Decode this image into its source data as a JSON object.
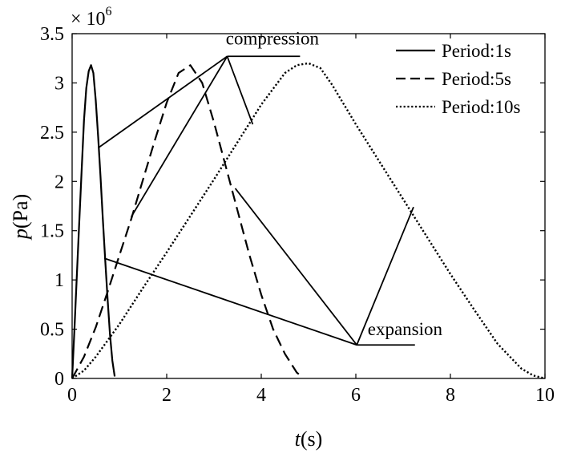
{
  "chart_data": {
    "type": "line",
    "title": "",
    "xlabel": {
      "var": "t",
      "unit": "(s)"
    },
    "ylabel": {
      "var": "p",
      "unit": "(Pa)"
    },
    "xlim": [
      0,
      10
    ],
    "ylim": [
      0,
      3.5
    ],
    "y_scale_label": {
      "base": "× 10",
      "exp": "6"
    },
    "grid": false,
    "legend_position": "top-right",
    "xticks": [
      0,
      2,
      4,
      6,
      8,
      10
    ],
    "yticks": [
      0,
      0.5,
      1,
      1.5,
      2,
      2.5,
      3,
      3.5
    ],
    "series": [
      {
        "name": "Period:1s",
        "style": "solid",
        "x": [
          0,
          0.05,
          0.1,
          0.15,
          0.2,
          0.25,
          0.3,
          0.35,
          0.4,
          0.45,
          0.5,
          0.55,
          0.6,
          0.65,
          0.7,
          0.75,
          0.8,
          0.85,
          0.9
        ],
        "y": [
          0,
          0.52,
          1.05,
          1.57,
          2.1,
          2.62,
          2.95,
          3.12,
          3.18,
          3.1,
          2.82,
          2.45,
          2.05,
          1.62,
          1.2,
          0.8,
          0.45,
          0.18,
          0.02
        ]
      },
      {
        "name": "Period:5s",
        "style": "dashed",
        "x": [
          0,
          0.25,
          0.5,
          0.75,
          1.0,
          1.25,
          1.5,
          1.75,
          2.0,
          2.25,
          2.5,
          2.75,
          3.0,
          3.25,
          3.5,
          3.75,
          4.0,
          4.25,
          4.5,
          4.75,
          4.85
        ],
        "y": [
          0,
          0.22,
          0.52,
          0.88,
          1.25,
          1.62,
          2.02,
          2.42,
          2.8,
          3.1,
          3.18,
          3.0,
          2.6,
          2.15,
          1.7,
          1.25,
          0.85,
          0.5,
          0.25,
          0.06,
          0.02
        ]
      },
      {
        "name": "Period:10s",
        "style": "dotted",
        "x": [
          0,
          0.25,
          0.5,
          1.0,
          1.5,
          2.0,
          2.5,
          3.0,
          3.5,
          4.0,
          4.5,
          4.75,
          5.0,
          5.25,
          5.5,
          6.0,
          6.5,
          7.0,
          7.5,
          8.0,
          8.5,
          9.0,
          9.5,
          9.75,
          10.0
        ],
        "y": [
          0,
          0.08,
          0.22,
          0.55,
          0.92,
          1.28,
          1.65,
          2.02,
          2.4,
          2.78,
          3.1,
          3.18,
          3.2,
          3.15,
          2.98,
          2.58,
          2.2,
          1.82,
          1.44,
          1.06,
          0.7,
          0.35,
          0.1,
          0.03,
          0.0
        ]
      }
    ],
    "annotations": [
      {
        "text": "compression",
        "hub": [
          3.28,
          3.27
        ],
        "bar_end": [
          4.82,
          3.27
        ],
        "arrows": [
          [
            0.55,
            2.34
          ],
          [
            1.25,
            1.64
          ],
          [
            3.82,
            2.58
          ]
        ],
        "label_pos": [
          3.25,
          3.39
        ]
      },
      {
        "text": "expansion",
        "hub": [
          6.02,
          0.34
        ],
        "bar_end": [
          7.25,
          0.34
        ],
        "arrows": [
          [
            0.68,
            1.22
          ],
          [
            3.45,
            1.93
          ],
          [
            7.22,
            1.74
          ]
        ],
        "label_pos": [
          6.25,
          0.44
        ]
      }
    ]
  }
}
